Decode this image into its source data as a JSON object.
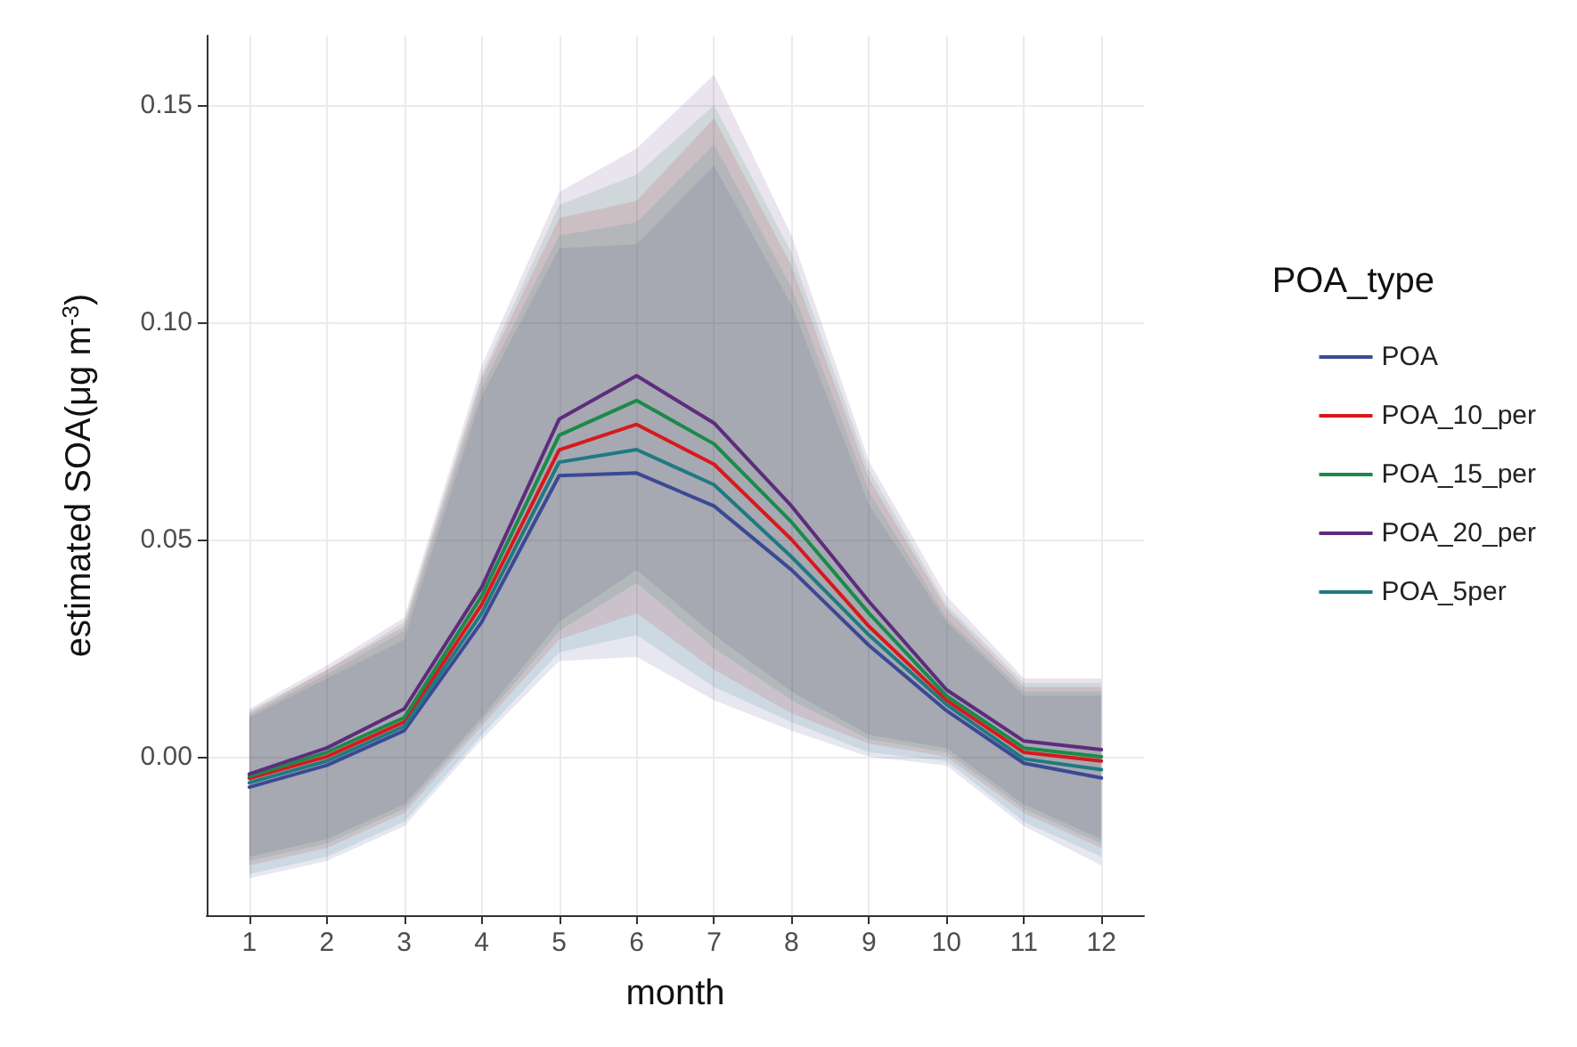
{
  "chart_data": {
    "type": "line",
    "xlabel": "month",
    "ylabel": "estimated SOA(μg m$^{-3}$)",
    "legend_title": "POA_type",
    "x": [
      1,
      2,
      3,
      4,
      5,
      6,
      7,
      8,
      9,
      10,
      11,
      12
    ],
    "xlim": [
      0.45,
      12.55
    ],
    "xticks": [
      1,
      2,
      3,
      4,
      5,
      6,
      7,
      8,
      9,
      10,
      11,
      12
    ],
    "ylim": [
      -0.0365,
      0.166
    ],
    "yticks": [
      {
        "value": 0,
        "label": "0.00"
      },
      {
        "value": 0.05,
        "label": "0.05"
      },
      {
        "value": 0.1,
        "label": "0.10"
      },
      {
        "value": 0.15,
        "label": "0.15"
      }
    ],
    "grid": true,
    "legend": "right",
    "line_style": "solid",
    "marker": "none",
    "series": [
      {
        "name": "POA",
        "color": "#3b4994",
        "values": [
          -0.007,
          -0.002,
          0.006,
          0.031,
          0.0647,
          0.0653,
          0.0577,
          0.043,
          0.0256,
          0.0106,
          -0.0015,
          -0.0049
        ],
        "lower": [
          -0.028,
          -0.024,
          -0.016,
          0.004,
          0.022,
          0.023,
          0.013,
          0.006,
          0.0,
          -0.002,
          -0.016,
          -0.025
        ],
        "upper": [
          0.009,
          0.018,
          0.027,
          0.083,
          0.117,
          0.118,
          0.136,
          0.104,
          0.058,
          0.031,
          0.014,
          0.014
        ]
      },
      {
        "name": "POA_10_per",
        "color": "#d7191c",
        "values": [
          -0.005,
          0.0,
          0.008,
          0.035,
          0.0706,
          0.0765,
          0.0673,
          0.05,
          0.03,
          0.013,
          0.001,
          -0.001
        ],
        "lower": [
          -0.025,
          -0.021,
          -0.013,
          0.007,
          0.027,
          0.033,
          0.02,
          0.01,
          0.003,
          0.0,
          -0.013,
          -0.021
        ],
        "upper": [
          0.01,
          0.02,
          0.03,
          0.087,
          0.124,
          0.128,
          0.147,
          0.113,
          0.064,
          0.034,
          0.016,
          0.016
        ]
      },
      {
        "name": "POA_15_per",
        "color": "#1a8a4a",
        "values": [
          -0.0045,
          0.001,
          0.009,
          0.037,
          0.074,
          0.082,
          0.072,
          0.054,
          0.033,
          0.014,
          0.002,
          0.0
        ],
        "lower": [
          -0.024,
          -0.02,
          -0.012,
          0.008,
          0.029,
          0.04,
          0.025,
          0.013,
          0.004,
          0.001,
          -0.012,
          -0.02
        ],
        "upper": [
          0.0105,
          0.02,
          0.031,
          0.088,
          0.127,
          0.134,
          0.15,
          0.116,
          0.066,
          0.035,
          0.017,
          0.017
        ]
      },
      {
        "name": "POA_20_per",
        "color": "#5e2c7c",
        "values": [
          -0.004,
          0.002,
          0.011,
          0.039,
          0.0777,
          0.0877,
          0.0768,
          0.0577,
          0.0357,
          0.0154,
          0.0036,
          0.0016
        ],
        "lower": [
          -0.023,
          -0.019,
          -0.011,
          0.009,
          0.031,
          0.043,
          0.028,
          0.015,
          0.005,
          0.002,
          -0.011,
          -0.019
        ],
        "upper": [
          0.011,
          0.021,
          0.032,
          0.09,
          0.13,
          0.14,
          0.157,
          0.12,
          0.068,
          0.037,
          0.018,
          0.018
        ]
      },
      {
        "name": "POA_5per",
        "color": "#1f7a80",
        "values": [
          -0.006,
          -0.001,
          0.007,
          0.033,
          0.0678,
          0.0707,
          0.0626,
          0.046,
          0.028,
          0.012,
          -0.0005,
          -0.003
        ],
        "lower": [
          -0.027,
          -0.023,
          -0.015,
          0.005,
          0.024,
          0.028,
          0.016,
          0.008,
          0.001,
          -0.001,
          -0.015,
          -0.023
        ],
        "upper": [
          0.0095,
          0.019,
          0.029,
          0.085,
          0.12,
          0.123,
          0.141,
          0.108,
          0.061,
          0.032,
          0.015,
          0.015
        ]
      }
    ]
  }
}
